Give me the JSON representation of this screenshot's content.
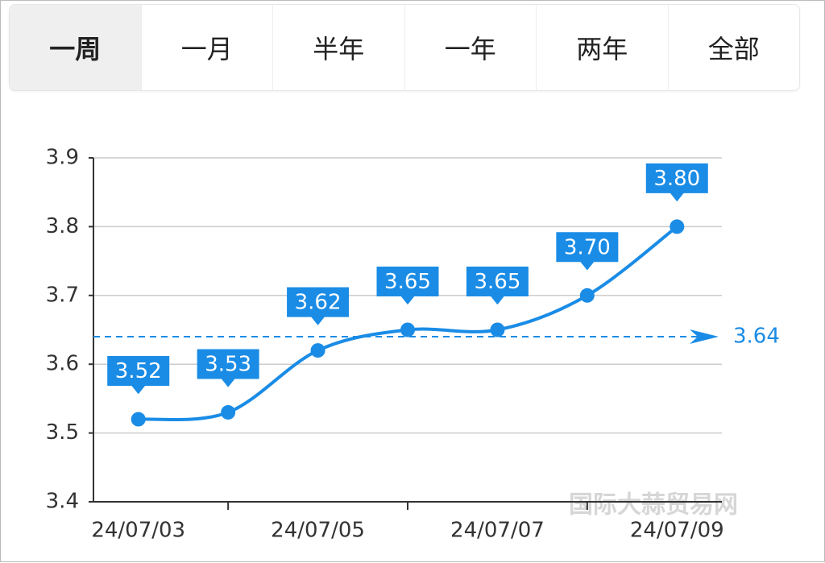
{
  "tabs": [
    "一周",
    "一月",
    "半年",
    "一年",
    "两年",
    "全部"
  ],
  "selected_tab": 0,
  "watermark": "国际大蒜贸易网",
  "chart_data": {
    "type": "line",
    "categories": [
      "24/07/03",
      null,
      "24/07/05",
      null,
      "24/07/07",
      null,
      "24/07/09"
    ],
    "series": [
      {
        "color": "#1a8ce6",
        "values": [
          3.52,
          3.53,
          3.62,
          3.65,
          3.65,
          3.7,
          3.8
        ],
        "value_labels": [
          "3.52",
          "3.53",
          "3.62",
          "3.65",
          "3.65",
          "3.70",
          "3.80"
        ]
      }
    ],
    "average_line": 3.64,
    "ylim": [
      3.4,
      3.9
    ],
    "yticks": [
      3.4,
      3.5,
      3.6,
      3.7,
      3.8,
      3.9
    ],
    "grid": true,
    "smooth": true
  }
}
